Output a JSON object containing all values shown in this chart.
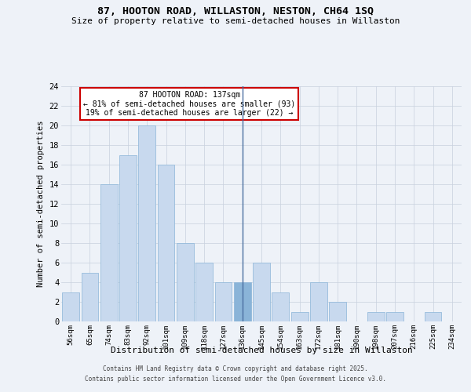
{
  "title": "87, HOOTON ROAD, WILLASTON, NESTON, CH64 1SQ",
  "subtitle": "Size of property relative to semi-detached houses in Willaston",
  "xlabel": "Distribution of semi-detached houses by size in Willaston",
  "ylabel": "Number of semi-detached properties",
  "categories": [
    "56sqm",
    "65sqm",
    "74sqm",
    "83sqm",
    "92sqm",
    "101sqm",
    "109sqm",
    "118sqm",
    "127sqm",
    "136sqm",
    "145sqm",
    "154sqm",
    "163sqm",
    "172sqm",
    "181sqm",
    "190sqm",
    "198sqm",
    "207sqm",
    "216sqm",
    "225sqm",
    "234sqm"
  ],
  "values": [
    3,
    5,
    14,
    17,
    20,
    16,
    8,
    6,
    4,
    4,
    6,
    3,
    1,
    4,
    2,
    0,
    1,
    1,
    0,
    1,
    0
  ],
  "bar_color_normal": "#c8d9ee",
  "bar_color_highlight": "#8ab4d8",
  "bar_edge_color": "#8ab4d8",
  "highlight_index": 9,
  "vline_x": 9,
  "vline_color": "#4a6fa0",
  "annotation_title": "87 HOOTON ROAD: 137sqm",
  "annotation_line1": "← 81% of semi-detached houses are smaller (93)",
  "annotation_line2": "19% of semi-detached houses are larger (22) →",
  "annotation_box_facecolor": "#ffffff",
  "annotation_box_edgecolor": "#cc0000",
  "ylim": [
    0,
    24
  ],
  "yticks": [
    0,
    2,
    4,
    6,
    8,
    10,
    12,
    14,
    16,
    18,
    20,
    22,
    24
  ],
  "background_color": "#eef2f8",
  "grid_color": "#c8d0de",
  "footer_line1": "Contains HM Land Registry data © Crown copyright and database right 2025.",
  "footer_line2": "Contains public sector information licensed under the Open Government Licence v3.0."
}
